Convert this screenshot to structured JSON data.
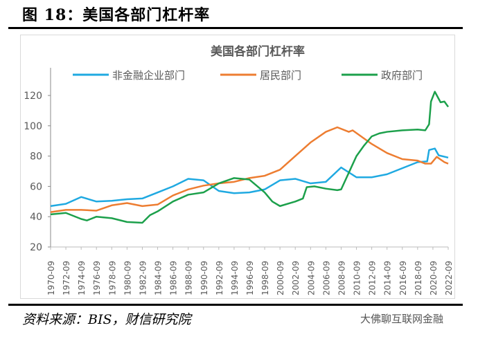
{
  "figure_title": "图 18：美国各部门杠杆率",
  "source": "资料来源：BIS，财信研究院",
  "watermark": "大佛聊互联网金融",
  "chart_data": {
    "type": "line",
    "title": "美国各部门杠杆率",
    "xlabel": "",
    "ylabel": "",
    "ylim": [
      20,
      120
    ],
    "yticks": [
      20,
      40,
      60,
      80,
      100,
      120
    ],
    "xticks": [
      "1970-09",
      "1972-09",
      "1974-09",
      "1976-09",
      "1978-09",
      "1980-09",
      "1982-09",
      "1984-09",
      "1986-09",
      "1988-09",
      "1990-09",
      "1992-09",
      "1994-09",
      "1996-09",
      "1998-09",
      "2000-09",
      "2002-09",
      "2004-09",
      "2006-09",
      "2008-09",
      "2010-09",
      "2012-09",
      "2014-09",
      "2016-09",
      "2018-09",
      "2020-09",
      "2022-09"
    ],
    "grid": false,
    "legend": "top",
    "series": [
      {
        "name": "非金融企业部门",
        "color": "#1fa9e1",
        "points": [
          [
            "1970-09",
            47
          ],
          [
            "1972-09",
            48.5
          ],
          [
            "1974-09",
            53
          ],
          [
            "1976-09",
            50
          ],
          [
            "1978-09",
            50.5
          ],
          [
            "1980-09",
            51.5
          ],
          [
            "1982-09",
            52
          ],
          [
            "1984-09",
            56
          ],
          [
            "1986-09",
            60
          ],
          [
            "1988-09",
            65
          ],
          [
            "1990-09",
            64
          ],
          [
            "1992-09",
            57
          ],
          [
            "1994-09",
            55.5
          ],
          [
            "1996-09",
            56
          ],
          [
            "1998-09",
            58
          ],
          [
            "2000-09",
            64
          ],
          [
            "2002-09",
            65
          ],
          [
            "2004-09",
            62
          ],
          [
            "2006-09",
            63
          ],
          [
            "2008-09",
            72.5
          ],
          [
            "2010-09",
            66
          ],
          [
            "2012-09",
            66
          ],
          [
            "2014-09",
            68
          ],
          [
            "2016-09",
            72
          ],
          [
            "2018-09",
            76
          ],
          [
            "2019-12",
            76.5
          ],
          [
            "2020-03",
            84
          ],
          [
            "2020-12",
            85
          ],
          [
            "2021-06",
            80.5
          ],
          [
            "2022-09",
            79
          ]
        ]
      },
      {
        "name": "居民部门",
        "color": "#ed7d31",
        "points": [
          [
            "1970-09",
            43
          ],
          [
            "1972-09",
            44.5
          ],
          [
            "1974-09",
            44.5
          ],
          [
            "1976-09",
            44
          ],
          [
            "1978-09",
            47.5
          ],
          [
            "1980-09",
            49
          ],
          [
            "1982-09",
            47
          ],
          [
            "1984-09",
            48
          ],
          [
            "1986-09",
            54
          ],
          [
            "1988-09",
            58
          ],
          [
            "1990-09",
            60.5
          ],
          [
            "1992-09",
            62
          ],
          [
            "1994-09",
            63
          ],
          [
            "1996-09",
            65.5
          ],
          [
            "1998-09",
            67
          ],
          [
            "2000-09",
            71
          ],
          [
            "2002-09",
            80
          ],
          [
            "2004-09",
            89
          ],
          [
            "2006-09",
            96
          ],
          [
            "2008-03",
            99
          ],
          [
            "2009-09",
            96
          ],
          [
            "2010-03",
            97
          ],
          [
            "2012-09",
            88
          ],
          [
            "2014-09",
            82
          ],
          [
            "2016-09",
            78
          ],
          [
            "2018-09",
            77
          ],
          [
            "2019-09",
            75
          ],
          [
            "2020-06",
            75
          ],
          [
            "2021-03",
            79.5
          ],
          [
            "2022-03",
            76
          ],
          [
            "2022-09",
            75
          ]
        ]
      },
      {
        "name": "政府部门",
        "color": "#1ca04b",
        "points": [
          [
            "1970-09",
            41.5
          ],
          [
            "1972-09",
            42.5
          ],
          [
            "1974-09",
            38.5
          ],
          [
            "1975-06",
            37.5
          ],
          [
            "1976-09",
            40
          ],
          [
            "1978-09",
            39
          ],
          [
            "1980-09",
            36.5
          ],
          [
            "1982-09",
            36
          ],
          [
            "1983-09",
            41
          ],
          [
            "1984-09",
            43.5
          ],
          [
            "1986-09",
            50
          ],
          [
            "1988-09",
            54.5
          ],
          [
            "1990-09",
            56
          ],
          [
            "1992-09",
            62
          ],
          [
            "1994-09",
            65.5
          ],
          [
            "1996-09",
            64.5
          ],
          [
            "1998-09",
            56
          ],
          [
            "1999-09",
            50
          ],
          [
            "2000-09",
            47
          ],
          [
            "2002-09",
            50
          ],
          [
            "2003-09",
            52
          ],
          [
            "2004-03",
            59.5
          ],
          [
            "2005-03",
            60
          ],
          [
            "2006-09",
            58.5
          ],
          [
            "2008-03",
            57.5
          ],
          [
            "2008-09",
            58
          ],
          [
            "2010-09",
            80
          ],
          [
            "2011-09",
            87
          ],
          [
            "2012-09",
            93
          ],
          [
            "2013-09",
            95
          ],
          [
            "2014-09",
            96
          ],
          [
            "2016-09",
            97
          ],
          [
            "2018-09",
            97.5
          ],
          [
            "2019-09",
            97
          ],
          [
            "2020-03",
            101
          ],
          [
            "2020-06",
            116
          ],
          [
            "2020-12",
            122.5
          ],
          [
            "2021-09",
            115.5
          ],
          [
            "2022-03",
            116
          ],
          [
            "2022-09",
            112.5
          ]
        ]
      }
    ]
  }
}
